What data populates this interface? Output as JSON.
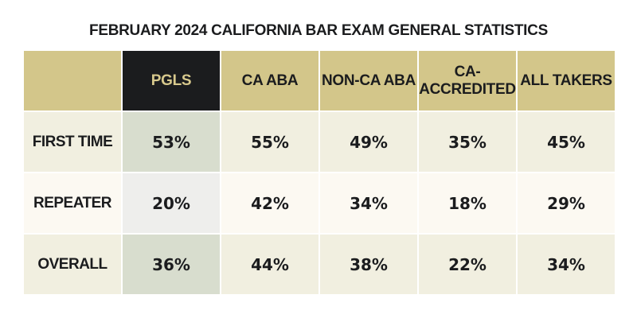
{
  "chart_data": {
    "type": "table",
    "title": "FEBRUARY 2024 CALIFORNIA BAR EXAM GENERAL STATISTICS",
    "columns": [
      "PGLS",
      "CA ABA",
      "NON-CA ABA",
      "CA-ACCREDITED",
      "ALL TAKERS"
    ],
    "rows": [
      {
        "label": "FIRST TIME",
        "values": [
          "53%",
          "55%",
          "49%",
          "35%",
          "45%"
        ]
      },
      {
        "label": "REPEATER",
        "values": [
          "20%",
          "42%",
          "34%",
          "18%",
          "29%"
        ]
      },
      {
        "label": "OVERALL",
        "values": [
          "36%",
          "44%",
          "38%",
          "22%",
          "34%"
        ]
      }
    ],
    "colors": {
      "header": "#d3c68a",
      "highlight_header": "#1b1c1e",
      "highlight_text": "#d8c98d",
      "row_odd": "#f1efe0",
      "row_even": "#fcf9f2",
      "highlight_cell": "#d8ddce"
    }
  }
}
